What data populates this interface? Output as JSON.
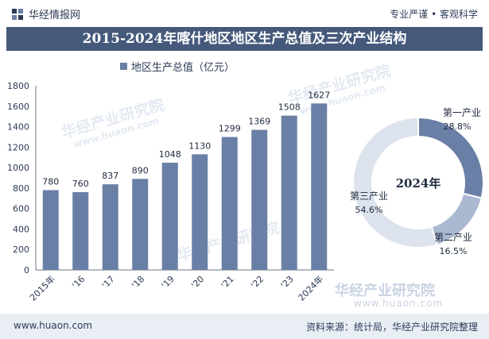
{
  "header": {
    "brand": "华经情报网",
    "slogan": "专业严谨 • 客观科学"
  },
  "watermark": {
    "name": "华经产业研究院",
    "url": "www.huaon.com"
  },
  "chart_data": [
    {
      "type": "bar",
      "title": "2015-2024年喀什地区地区生产总值及三次产业结构",
      "series": [
        {
          "name": "地区生产总值（亿元）",
          "values": [
            780,
            760,
            837,
            890,
            1048,
            1130,
            1299,
            1369,
            1508,
            1627
          ]
        }
      ],
      "categories": [
        "2015年",
        "'16",
        "'17",
        "'18",
        "'19",
        "'20",
        "'21",
        "'22",
        "'23",
        "2024年"
      ],
      "ylim": [
        0,
        1800
      ],
      "yticks": [
        0,
        200,
        400,
        600,
        800,
        1000,
        1200,
        1400,
        1600,
        1800
      ],
      "bar_color": "#6a7fa6",
      "legend_position": "top-left",
      "grid": false
    },
    {
      "type": "pie",
      "donut": true,
      "center_label": "2024年",
      "slices": [
        {
          "name": "第一产业",
          "label": "28.8%",
          "value": 28.8,
          "color": "#6a7fa6"
        },
        {
          "name": "第二产业",
          "label": "16.5%",
          "value": 16.5,
          "color": "#aab8d1"
        },
        {
          "name": "第三产业",
          "label": "54.6%",
          "value": 54.6,
          "color": "#dde3ed"
        }
      ]
    }
  ],
  "footer": {
    "site": "www.huaon.com",
    "source": "资料来源：统计局，华经产业研究院整理"
  }
}
